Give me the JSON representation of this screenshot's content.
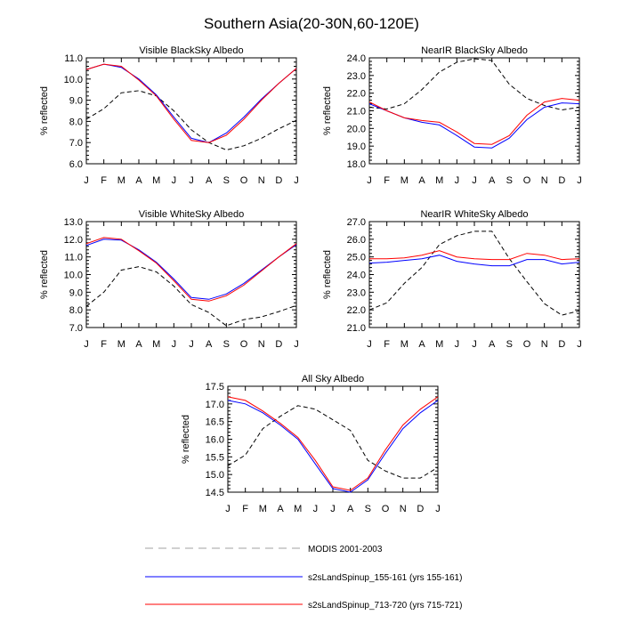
{
  "figure": {
    "title": "Southern Asia(20-30N,60-120E)"
  },
  "colors": {
    "modis": "#000000",
    "run1": "#0000ff",
    "run2": "#ff0000"
  },
  "legend": {
    "items": [
      {
        "label": "MODIS 2001-2003",
        "style": "dashed",
        "color": "#000000"
      },
      {
        "label": "s2sLandSpinup_155-161 (yrs 155-161)",
        "style": "solid",
        "color": "#0000ff"
      },
      {
        "label": "s2sLandSpinup_713-720 (yrs 715-721)",
        "style": "solid",
        "color": "#ff0000"
      }
    ]
  },
  "chart_data": [
    {
      "type": "line",
      "title": "Visible BlackSky Albedo",
      "ylabel": "% reflected",
      "categories": [
        "J",
        "F",
        "M",
        "A",
        "M",
        "J",
        "J",
        "A",
        "S",
        "O",
        "N",
        "D",
        "J"
      ],
      "ylim": [
        6.0,
        11.0
      ],
      "yticks": [
        6.0,
        7.0,
        8.0,
        9.0,
        10.0,
        11.0
      ],
      "series": [
        {
          "name": "MODIS 2001-2003",
          "values": [
            8.1,
            8.6,
            9.35,
            9.45,
            9.2,
            8.5,
            7.6,
            7.0,
            6.65,
            6.85,
            7.2,
            7.65,
            8.05
          ]
        },
        {
          "name": "s2sLandSpinup_155-161 (yrs 155-161)",
          "values": [
            10.45,
            10.7,
            10.55,
            10.0,
            9.25,
            8.2,
            7.2,
            7.0,
            7.45,
            8.2,
            9.05,
            9.8,
            10.5
          ]
        },
        {
          "name": "s2sLandSpinup_713-720 (yrs 715-721)",
          "values": [
            10.45,
            10.7,
            10.6,
            9.95,
            9.2,
            8.1,
            7.1,
            7.0,
            7.35,
            8.1,
            9.0,
            9.8,
            10.5
          ]
        }
      ]
    },
    {
      "type": "line",
      "title": "NearIR BlackSky Albedo",
      "ylabel": "% reflected",
      "categories": [
        "J",
        "F",
        "M",
        "A",
        "M",
        "J",
        "J",
        "A",
        "S",
        "O",
        "N",
        "D",
        "J"
      ],
      "ylim": [
        18.0,
        24.0
      ],
      "yticks": [
        18.0,
        19.0,
        20.0,
        21.0,
        22.0,
        23.0,
        24.0
      ],
      "series": [
        {
          "name": "MODIS 2001-2003",
          "values": [
            21.2,
            21.1,
            21.4,
            22.2,
            23.2,
            23.75,
            23.95,
            23.85,
            22.5,
            21.7,
            21.3,
            21.05,
            21.2
          ]
        },
        {
          "name": "s2sLandSpinup_155-161 (yrs 155-161)",
          "values": [
            21.4,
            21.0,
            20.6,
            20.35,
            20.2,
            19.6,
            18.95,
            18.9,
            19.45,
            20.5,
            21.2,
            21.45,
            21.4
          ]
        },
        {
          "name": "s2sLandSpinup_713-720 (yrs 715-721)",
          "values": [
            21.5,
            21.0,
            20.6,
            20.45,
            20.35,
            19.8,
            19.15,
            19.1,
            19.6,
            20.75,
            21.5,
            21.7,
            21.6
          ]
        }
      ]
    },
    {
      "type": "line",
      "title": "Visible WhiteSky Albedo",
      "ylabel": "% reflected",
      "categories": [
        "J",
        "F",
        "M",
        "A",
        "M",
        "J",
        "J",
        "A",
        "S",
        "O",
        "N",
        "D",
        "J"
      ],
      "ylim": [
        7.0,
        13.0
      ],
      "yticks": [
        7.0,
        8.0,
        9.0,
        10.0,
        11.0,
        12.0,
        13.0
      ],
      "series": [
        {
          "name": "MODIS 2001-2003",
          "values": [
            8.2,
            9.0,
            10.25,
            10.45,
            10.15,
            9.35,
            8.3,
            7.85,
            7.1,
            7.45,
            7.6,
            7.9,
            8.25
          ]
        },
        {
          "name": "s2sLandSpinup_155-161 (yrs 155-161)",
          "values": [
            11.65,
            12.0,
            11.95,
            11.4,
            10.7,
            9.75,
            8.7,
            8.6,
            8.9,
            9.5,
            10.25,
            11.0,
            11.7
          ]
        },
        {
          "name": "s2sLandSpinup_713-720 (yrs 715-721)",
          "values": [
            11.75,
            12.1,
            12.0,
            11.35,
            10.65,
            9.65,
            8.6,
            8.5,
            8.8,
            9.4,
            10.2,
            11.0,
            11.75
          ]
        }
      ]
    },
    {
      "type": "line",
      "title": "NearIR WhiteSky Albedo",
      "ylabel": "% reflected",
      "categories": [
        "J",
        "F",
        "M",
        "A",
        "M",
        "J",
        "J",
        "A",
        "S",
        "O",
        "N",
        "D",
        "J"
      ],
      "ylim": [
        21.0,
        27.0
      ],
      "yticks": [
        21.0,
        22.0,
        23.0,
        24.0,
        25.0,
        26.0,
        27.0
      ],
      "series": [
        {
          "name": "MODIS 2001-2003",
          "values": [
            22.0,
            22.4,
            23.5,
            24.4,
            25.7,
            26.2,
            26.45,
            26.45,
            24.9,
            23.6,
            22.35,
            21.7,
            21.95
          ]
        },
        {
          "name": "s2sLandSpinup_155-161 (yrs 155-161)",
          "values": [
            24.65,
            24.7,
            24.8,
            24.9,
            25.1,
            24.75,
            24.6,
            24.5,
            24.5,
            24.85,
            24.85,
            24.6,
            24.7
          ]
        },
        {
          "name": "s2sLandSpinup_713-720 (yrs 715-721)",
          "values": [
            24.9,
            24.9,
            24.95,
            25.1,
            25.35,
            25.0,
            24.9,
            24.85,
            24.85,
            25.2,
            25.1,
            24.85,
            24.9
          ]
        }
      ]
    },
    {
      "type": "line",
      "title": "All Sky Albedo",
      "ylabel": "% reflected",
      "categories": [
        "J",
        "F",
        "M",
        "A",
        "M",
        "J",
        "J",
        "A",
        "S",
        "O",
        "N",
        "D",
        "J"
      ],
      "ylim": [
        14.5,
        17.5
      ],
      "yticks": [
        14.5,
        15.0,
        15.5,
        16.0,
        16.5,
        17.0,
        17.5
      ],
      "series": [
        {
          "name": "MODIS 2001-2003",
          "values": [
            15.25,
            15.55,
            16.3,
            16.65,
            16.95,
            16.85,
            16.55,
            16.25,
            15.4,
            15.1,
            14.9,
            14.9,
            15.2
          ]
        },
        {
          "name": "s2sLandSpinup_155-161 (yrs 155-161)",
          "values": [
            17.1,
            17.0,
            16.75,
            16.4,
            16.0,
            15.3,
            14.6,
            14.5,
            14.85,
            15.6,
            16.3,
            16.75,
            17.1
          ]
        },
        {
          "name": "s2sLandSpinup_713-720 (yrs 715-721)",
          "values": [
            17.2,
            17.1,
            16.8,
            16.45,
            16.05,
            15.4,
            14.65,
            14.55,
            14.9,
            15.7,
            16.4,
            16.85,
            17.2
          ]
        }
      ]
    }
  ]
}
